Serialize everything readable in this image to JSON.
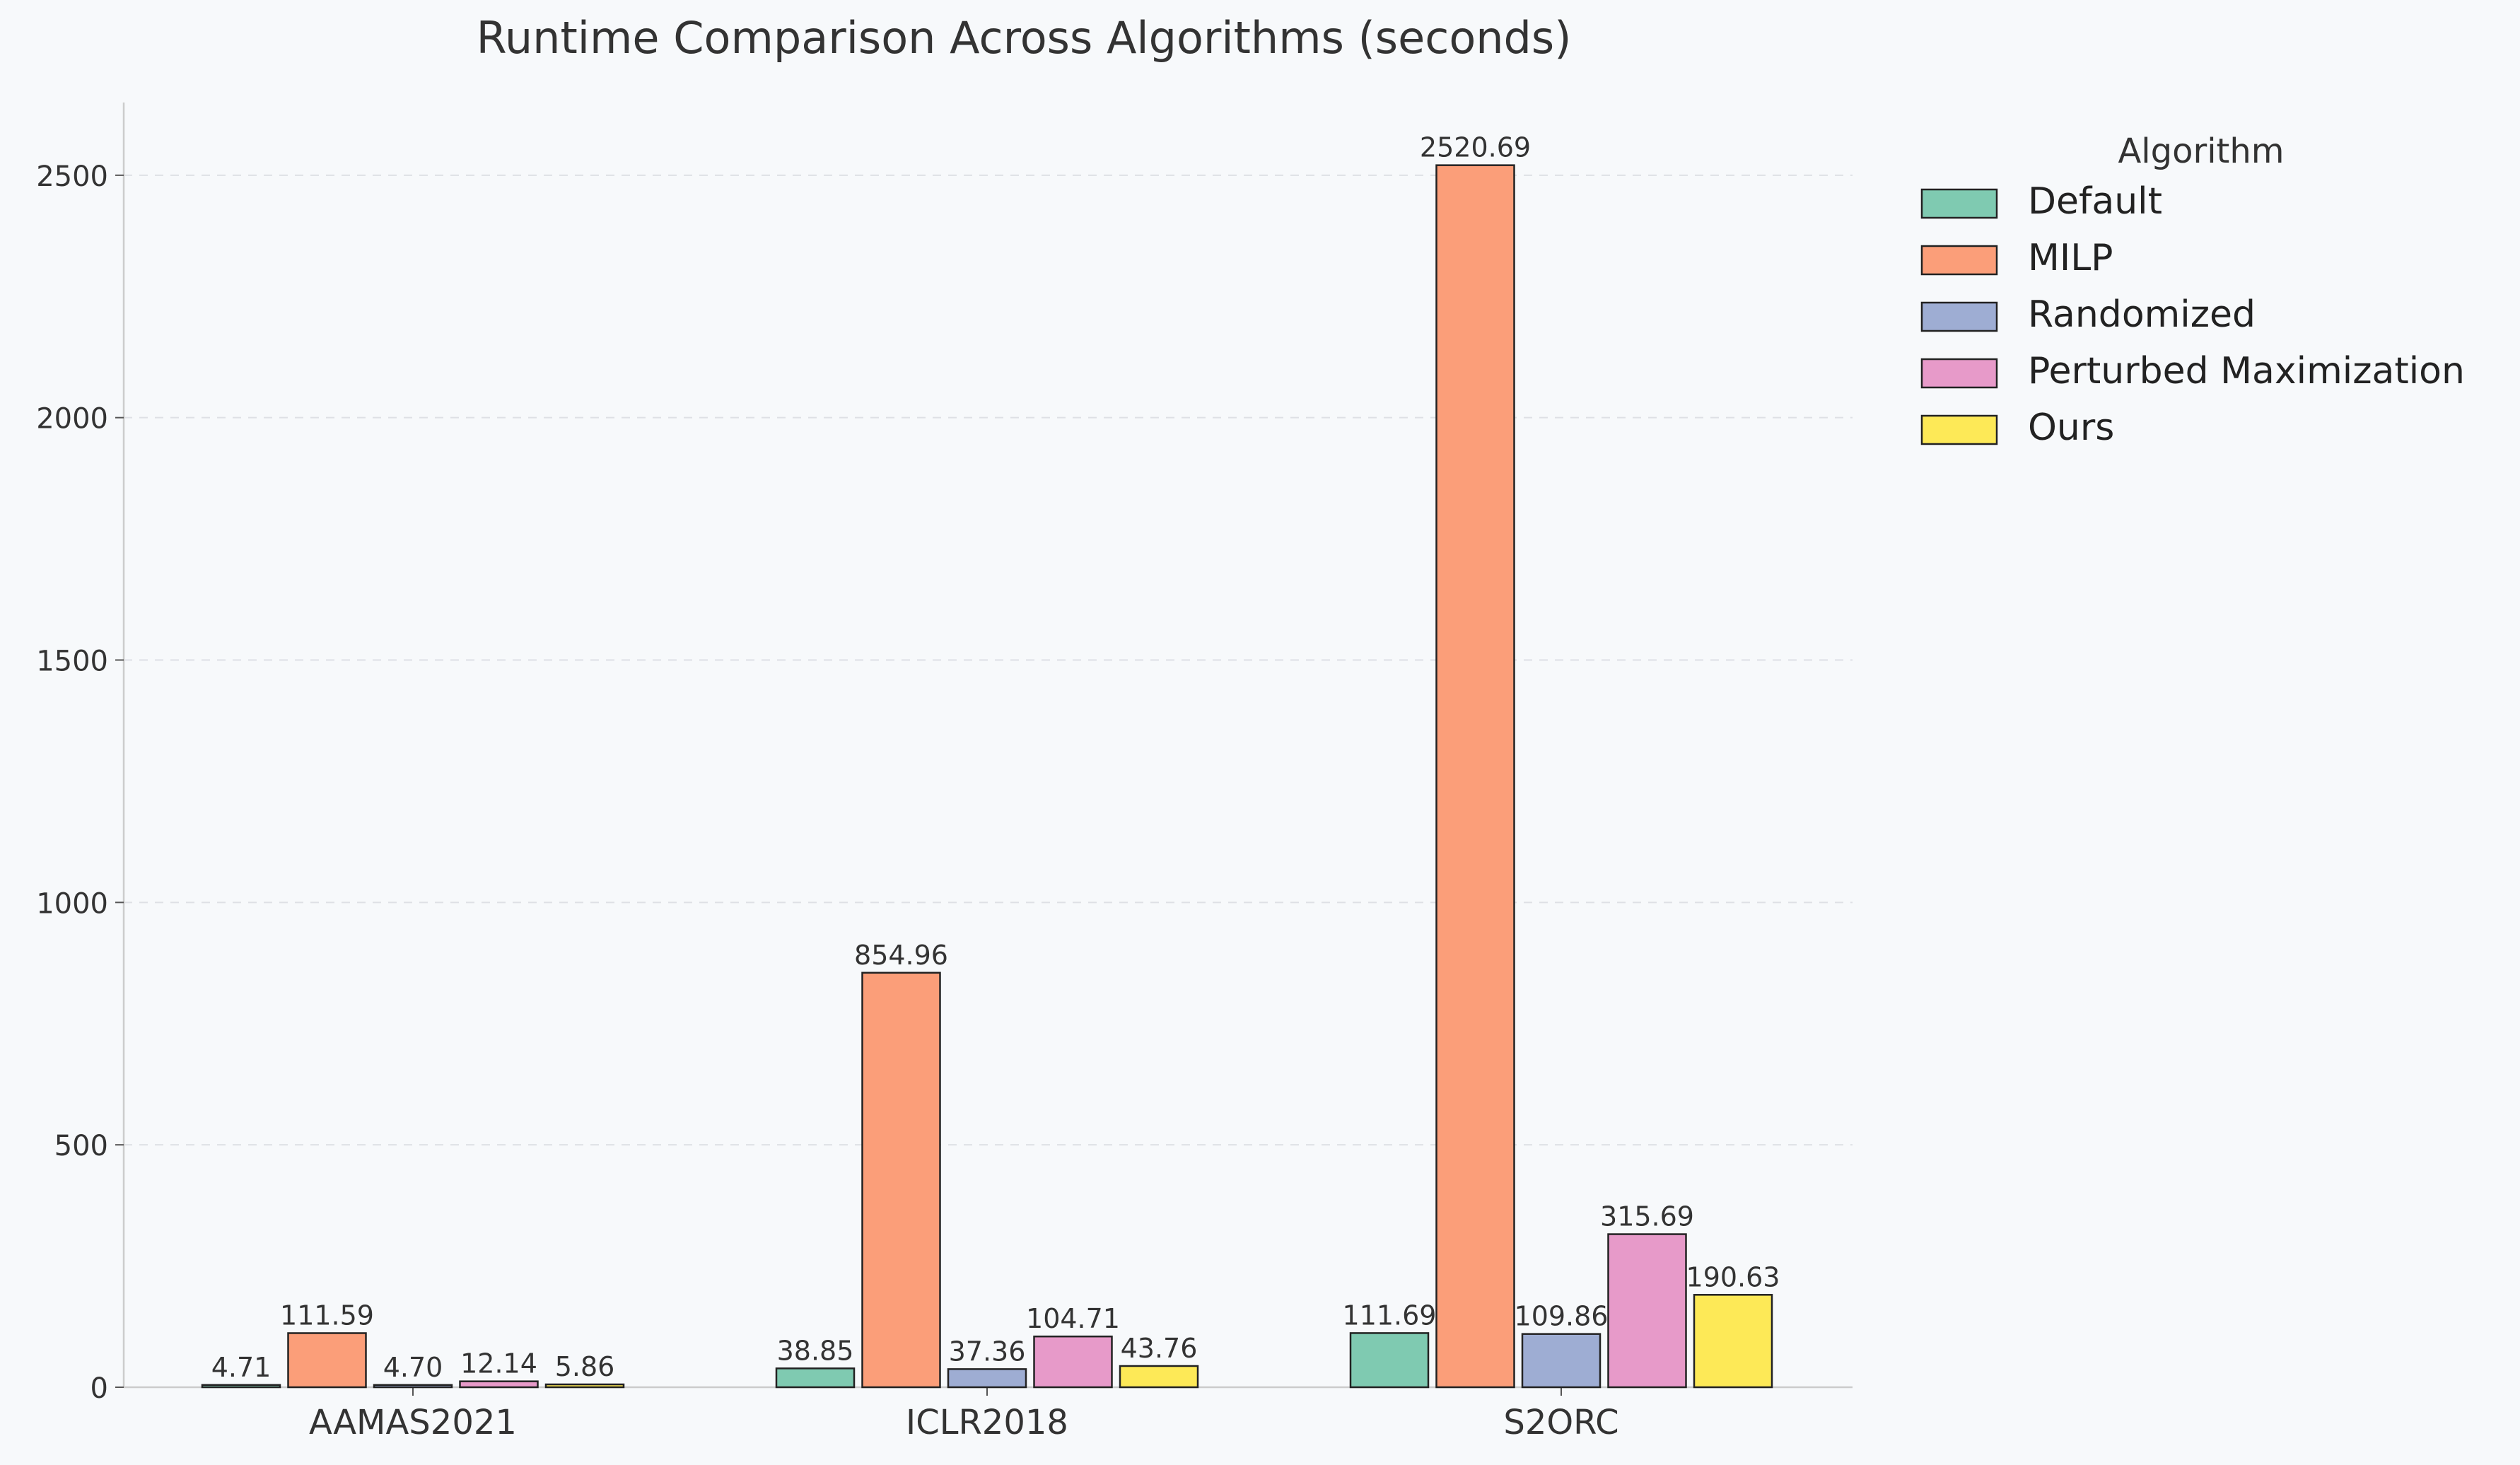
{
  "chart_data": {
    "type": "bar",
    "title": "Runtime Comparison Across Algorithms (seconds)",
    "xlabel": "",
    "ylabel": "",
    "categories": [
      "AAMAS2021",
      "ICLR2018",
      "S2ORC"
    ],
    "series": [
      {
        "name": "Default",
        "color": "#7fcab1",
        "values": [
          4.71,
          38.85,
          111.69
        ],
        "labels": [
          "4.71",
          "38.85",
          "111.69"
        ]
      },
      {
        "name": "MILP",
        "color": "#fb9e79",
        "values": [
          111.59,
          854.96,
          2520.69
        ],
        "labels": [
          "111.59",
          "854.96",
          "2520.69"
        ]
      },
      {
        "name": "Randomized",
        "color": "#9eadd3",
        "values": [
          4.7,
          37.36,
          109.86
        ],
        "labels": [
          "4.70",
          "37.36",
          "109.86"
        ]
      },
      {
        "name": "Perturbed Maximization",
        "color": "#e79ac9",
        "values": [
          12.14,
          104.71,
          315.69
        ],
        "labels": [
          "12.14",
          "104.71",
          "315.69"
        ]
      },
      {
        "name": "Ours",
        "color": "#fde957",
        "values": [
          5.86,
          43.76,
          190.63
        ],
        "labels": [
          "5.86",
          "43.76",
          "190.63"
        ]
      }
    ],
    "ylim": [
      0,
      2650
    ],
    "yticks": [
      0,
      500,
      1000,
      1500,
      2000,
      2500
    ],
    "grid": true,
    "legend": {
      "title": "Algorithm",
      "placement": "upper right, outside plot"
    }
  }
}
